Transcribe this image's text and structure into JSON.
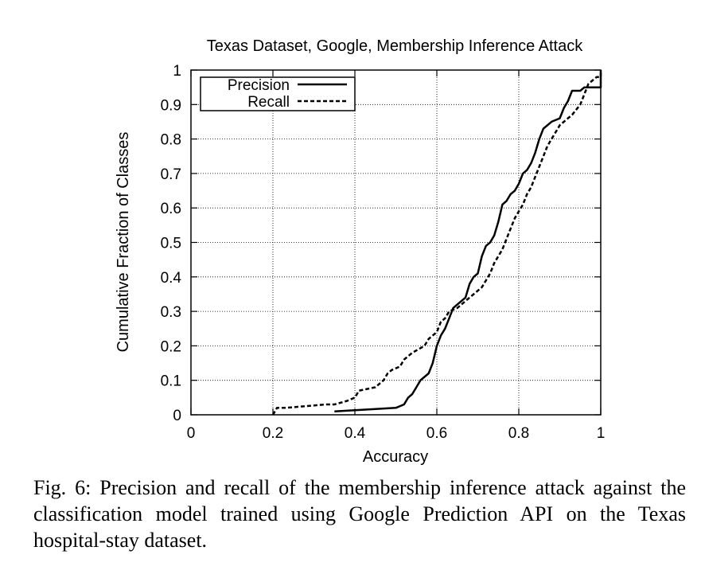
{
  "chart_data": {
    "type": "line",
    "title": "Texas Dataset, Google, Membership Inference Attack",
    "xlabel": "Accuracy",
    "ylabel": "Cumulative Fraction of Classes",
    "xlim": [
      0,
      1
    ],
    "ylim": [
      0,
      1
    ],
    "x_ticks": [
      0,
      0.2,
      0.4,
      0.6,
      0.8,
      1
    ],
    "y_ticks": [
      0,
      0.1,
      0.2,
      0.3,
      0.4,
      0.5,
      0.6,
      0.7,
      0.8,
      0.9,
      1
    ],
    "x_tick_labels": [
      "0",
      "0.2",
      "0.4",
      "0.6",
      "0.8",
      "1"
    ],
    "y_tick_labels": [
      "0",
      "0.1",
      "0.2",
      "0.3",
      "0.4",
      "0.5",
      "0.6",
      "0.7",
      "0.8",
      "0.9",
      "1"
    ],
    "grid": true,
    "legend_position": "top-left",
    "series": [
      {
        "name": "Precision",
        "style": "solid",
        "color": "#000000",
        "points": [
          [
            0.35,
            0.01
          ],
          [
            0.5,
            0.02
          ],
          [
            0.52,
            0.03
          ],
          [
            0.53,
            0.05
          ],
          [
            0.54,
            0.06
          ],
          [
            0.55,
            0.08
          ],
          [
            0.56,
            0.1
          ],
          [
            0.58,
            0.12
          ],
          [
            0.59,
            0.15
          ],
          [
            0.6,
            0.2
          ],
          [
            0.61,
            0.23
          ],
          [
            0.62,
            0.25
          ],
          [
            0.63,
            0.28
          ],
          [
            0.64,
            0.31
          ],
          [
            0.65,
            0.32
          ],
          [
            0.66,
            0.33
          ],
          [
            0.67,
            0.34
          ],
          [
            0.68,
            0.38
          ],
          [
            0.69,
            0.4
          ],
          [
            0.7,
            0.41
          ],
          [
            0.71,
            0.46
          ],
          [
            0.72,
            0.49
          ],
          [
            0.73,
            0.5
          ],
          [
            0.74,
            0.52
          ],
          [
            0.75,
            0.56
          ],
          [
            0.76,
            0.61
          ],
          [
            0.77,
            0.62
          ],
          [
            0.78,
            0.64
          ],
          [
            0.79,
            0.65
          ],
          [
            0.8,
            0.67
          ],
          [
            0.81,
            0.7
          ],
          [
            0.82,
            0.71
          ],
          [
            0.83,
            0.73
          ],
          [
            0.84,
            0.76
          ],
          [
            0.85,
            0.8
          ],
          [
            0.86,
            0.83
          ],
          [
            0.87,
            0.84
          ],
          [
            0.88,
            0.85
          ],
          [
            0.9,
            0.86
          ],
          [
            0.91,
            0.89
          ],
          [
            0.92,
            0.91
          ],
          [
            0.93,
            0.94
          ],
          [
            0.95,
            0.94
          ],
          [
            0.96,
            0.95
          ],
          [
            1.0,
            0.95
          ],
          [
            1.0,
            1.0
          ]
        ]
      },
      {
        "name": "Recall",
        "style": "dashed",
        "color": "#000000",
        "points": [
          [
            0.2,
            0.0
          ],
          [
            0.21,
            0.02
          ],
          [
            0.23,
            0.02
          ],
          [
            0.33,
            0.03
          ],
          [
            0.35,
            0.03
          ],
          [
            0.38,
            0.04
          ],
          [
            0.4,
            0.05
          ],
          [
            0.41,
            0.07
          ],
          [
            0.45,
            0.08
          ],
          [
            0.47,
            0.1
          ],
          [
            0.48,
            0.12
          ],
          [
            0.49,
            0.13
          ],
          [
            0.51,
            0.14
          ],
          [
            0.52,
            0.16
          ],
          [
            0.54,
            0.18
          ],
          [
            0.57,
            0.2
          ],
          [
            0.58,
            0.22
          ],
          [
            0.6,
            0.24
          ],
          [
            0.61,
            0.27
          ],
          [
            0.62,
            0.28
          ],
          [
            0.63,
            0.3
          ],
          [
            0.65,
            0.31
          ],
          [
            0.67,
            0.33
          ],
          [
            0.68,
            0.34
          ],
          [
            0.69,
            0.35
          ],
          [
            0.7,
            0.36
          ],
          [
            0.71,
            0.37
          ],
          [
            0.72,
            0.39
          ],
          [
            0.73,
            0.41
          ],
          [
            0.74,
            0.44
          ],
          [
            0.75,
            0.46
          ],
          [
            0.76,
            0.48
          ],
          [
            0.77,
            0.51
          ],
          [
            0.78,
            0.54
          ],
          [
            0.79,
            0.57
          ],
          [
            0.8,
            0.59
          ],
          [
            0.81,
            0.61
          ],
          [
            0.82,
            0.64
          ],
          [
            0.83,
            0.66
          ],
          [
            0.84,
            0.69
          ],
          [
            0.85,
            0.72
          ],
          [
            0.86,
            0.75
          ],
          [
            0.87,
            0.78
          ],
          [
            0.88,
            0.8
          ],
          [
            0.89,
            0.82
          ],
          [
            0.9,
            0.84
          ],
          [
            0.92,
            0.86
          ],
          [
            0.93,
            0.87
          ],
          [
            0.95,
            0.9
          ],
          [
            0.96,
            0.93
          ],
          [
            0.97,
            0.96
          ],
          [
            0.98,
            0.97
          ],
          [
            0.99,
            0.98
          ],
          [
            1.0,
            0.98
          ],
          [
            1.0,
            1.0
          ]
        ]
      }
    ]
  },
  "caption": "Fig. 6: Precision and recall of the membership inference attack against the classification model trained using Google Prediction API on the Texas hospital-stay dataset."
}
